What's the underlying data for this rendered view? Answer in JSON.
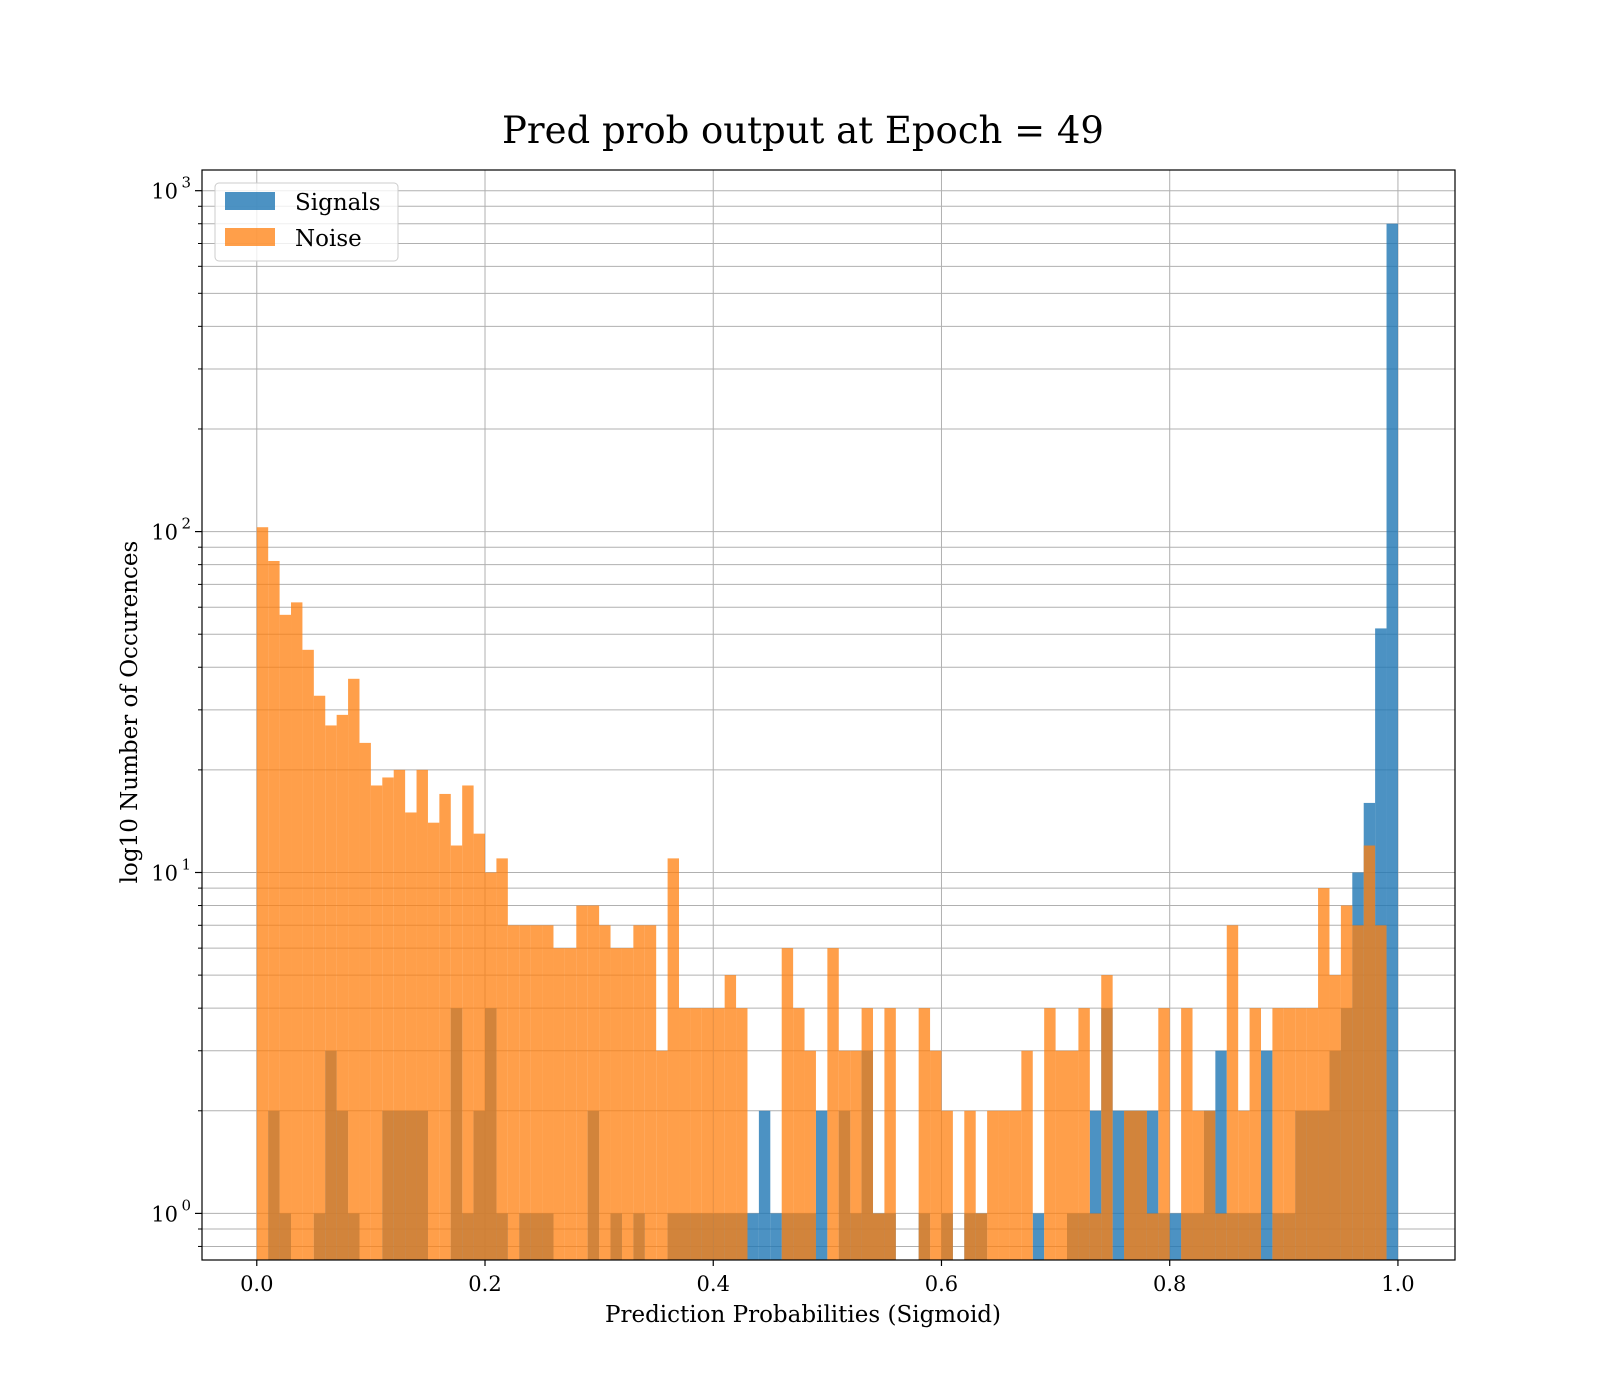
{
  "chart_data": {
    "type": "bar",
    "title": "Pred prob output at Epoch = 49",
    "xlabel": "Prediction Probabilities (Sigmoid)",
    "ylabel": "log10 Number of Occurences",
    "xlim": [
      -0.048,
      1.05
    ],
    "ylim": [
      0.73,
      1150
    ],
    "yscale": "log",
    "grid": true,
    "legend_position": "upper-left",
    "x_ticks": [
      {
        "value": 0.0,
        "label": "0.0"
      },
      {
        "value": 0.2,
        "label": "0.2"
      },
      {
        "value": 0.4,
        "label": "0.4"
      },
      {
        "value": 0.6,
        "label": "0.6"
      },
      {
        "value": 0.8,
        "label": "0.8"
      },
      {
        "value": 1.0,
        "label": "1.0"
      }
    ],
    "y_ticks": [
      {
        "value": 1,
        "base": "10",
        "exp": "0"
      },
      {
        "value": 10,
        "base": "10",
        "exp": "1"
      },
      {
        "value": 100,
        "base": "10",
        "exp": "2"
      },
      {
        "value": 1000,
        "base": "10",
        "exp": "3"
      }
    ],
    "bin_width": 0.01,
    "bin_start": 0.0,
    "series": [
      {
        "name": "Signals",
        "color": "#1f77b4",
        "opacity": 0.8,
        "values": [
          0,
          2,
          1,
          0,
          0,
          1,
          3,
          2,
          1,
          0,
          0,
          2,
          2,
          2,
          2,
          0,
          0,
          4,
          1,
          2,
          4,
          1,
          0,
          1,
          1,
          1,
          0,
          0,
          0,
          2,
          0,
          1,
          0,
          1,
          0,
          0,
          1,
          1,
          1,
          1,
          1,
          1,
          1,
          1,
          2,
          1,
          1,
          1,
          1,
          2,
          0,
          2,
          1,
          3,
          1,
          1,
          0,
          0,
          1,
          0,
          1,
          0,
          1,
          1,
          0,
          0,
          0,
          0,
          1,
          0,
          0,
          1,
          1,
          2,
          4,
          2,
          2,
          2,
          2,
          1,
          1,
          1,
          1,
          2,
          3,
          1,
          1,
          1,
          3,
          1,
          1,
          2,
          2,
          2,
          3,
          4,
          10,
          16,
          52,
          800
        ]
      },
      {
        "name": "Noise",
        "color": "#ff7f0e",
        "opacity": 0.75,
        "values": [
          103,
          82,
          57,
          62,
          45,
          33,
          27,
          29,
          37,
          24,
          18,
          19,
          20,
          15,
          20,
          14,
          17,
          12,
          18,
          13,
          10,
          11,
          7,
          7,
          7,
          7,
          6,
          6,
          8,
          8,
          7,
          6,
          6,
          7,
          7,
          3,
          11,
          4,
          4,
          4,
          4,
          5,
          4,
          0,
          0,
          0,
          6,
          4,
          3,
          0,
          6,
          3,
          3,
          4,
          1,
          4,
          0,
          0,
          4,
          3,
          2,
          0,
          2,
          1,
          2,
          2,
          2,
          3,
          0,
          4,
          3,
          3,
          4,
          1,
          5,
          0,
          2,
          2,
          1,
          4,
          0,
          4,
          2,
          2,
          1,
          7,
          2,
          4,
          0,
          4,
          4,
          4,
          4,
          9,
          5,
          8,
          7,
          12,
          7,
          0
        ]
      }
    ]
  },
  "legend": {
    "items": [
      {
        "label": "Signals",
        "color": "#1f77b4"
      },
      {
        "label": "Noise",
        "color": "#ff7f0e"
      }
    ]
  }
}
